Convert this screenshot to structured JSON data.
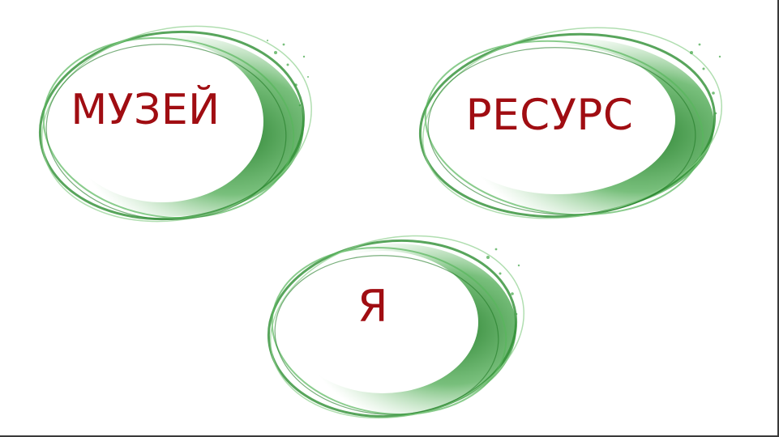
{
  "slide": {
    "words": {
      "museum": "МУЗЕЙ",
      "resource": "РЕСУРС",
      "me": "Я"
    }
  },
  "colors": {
    "text": "#a00d12",
    "swirl_dark": "#1f7a25",
    "swirl_mid": "#3fa444",
    "swirl_light": "#8fd08f",
    "background": "#ffffff"
  },
  "icons": [
    "green-swirl-ring",
    "green-swirl-ring",
    "green-swirl-ring"
  ]
}
